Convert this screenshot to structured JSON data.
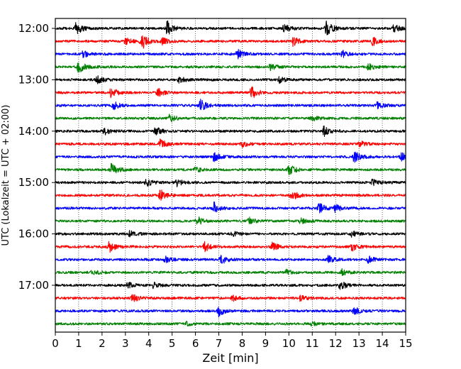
{
  "chart_data": {
    "type": "line",
    "subtype": "helicorder",
    "title": "",
    "xlabel": "Zeit  [min]",
    "ylabel": "UTC (Lokalzeit = UTC + 02:00)",
    "xlim": [
      0,
      15
    ],
    "x_ticks": [
      "0",
      "1",
      "2",
      "3",
      "4",
      "5",
      "6",
      "7",
      "8",
      "9",
      "10",
      "11",
      "12",
      "13",
      "14",
      "15"
    ],
    "y_tick_labels": [
      "12:00",
      "13:00",
      "14:00",
      "15:00",
      "16:00",
      "17:00"
    ],
    "rows_per_hour": 4,
    "row_minutes": 15,
    "grid": "vertical dotted at each minute",
    "trace_colors": [
      "#000000",
      "#ff0000",
      "#0000ff",
      "#008000"
    ],
    "rows": [
      {
        "start": "12:00",
        "events": [
          [
            0.9,
            1.0
          ],
          [
            4.8,
            1.1
          ],
          [
            9.8,
            0.6
          ],
          [
            11.6,
            1.3
          ],
          [
            14.5,
            0.6
          ]
        ]
      },
      {
        "start": "12:15",
        "events": [
          [
            3.0,
            0.6
          ],
          [
            3.7,
            1.3
          ],
          [
            4.6,
            0.5
          ],
          [
            10.2,
            0.8
          ],
          [
            13.6,
            0.6
          ]
        ]
      },
      {
        "start": "12:30",
        "events": [
          [
            1.2,
            0.5
          ],
          [
            7.8,
            0.7
          ],
          [
            12.3,
            0.5
          ]
        ]
      },
      {
        "start": "12:45",
        "events": [
          [
            1.0,
            0.9
          ],
          [
            9.2,
            0.6
          ],
          [
            13.4,
            0.6
          ]
        ]
      },
      {
        "start": "13:00",
        "events": [
          [
            1.8,
            0.6
          ],
          [
            5.3,
            0.5
          ],
          [
            9.6,
            0.4
          ]
        ]
      },
      {
        "start": "13:15",
        "events": [
          [
            2.4,
            0.9
          ],
          [
            4.4,
            0.7
          ],
          [
            8.4,
            1.0
          ]
        ]
      },
      {
        "start": "13:30",
        "events": [
          [
            2.5,
            0.6
          ],
          [
            6.2,
            1.0
          ],
          [
            13.8,
            0.5
          ]
        ]
      },
      {
        "start": "13:45",
        "events": [
          [
            4.9,
            0.6
          ],
          [
            11.0,
            0.4
          ]
        ]
      },
      {
        "start": "14:00",
        "events": [
          [
            2.1,
            0.5
          ],
          [
            4.3,
            0.6
          ],
          [
            11.5,
            0.8
          ]
        ]
      },
      {
        "start": "14:15",
        "events": [
          [
            4.5,
            0.7
          ],
          [
            8.0,
            0.4
          ],
          [
            13.0,
            0.5
          ]
        ]
      },
      {
        "start": "14:30",
        "events": [
          [
            6.8,
            0.7
          ],
          [
            12.8,
            0.9
          ],
          [
            14.8,
            0.7
          ]
        ]
      },
      {
        "start": "14:45",
        "events": [
          [
            2.4,
            1.0
          ],
          [
            10.0,
            1.0
          ],
          [
            6.0,
            0.4
          ]
        ]
      },
      {
        "start": "15:00",
        "events": [
          [
            3.9,
            0.6
          ],
          [
            5.2,
            0.6
          ],
          [
            13.6,
            0.6
          ]
        ]
      },
      {
        "start": "15:15",
        "events": [
          [
            4.5,
            0.9
          ],
          [
            10.1,
            0.9
          ]
        ]
      },
      {
        "start": "15:30",
        "events": [
          [
            6.8,
            0.9
          ],
          [
            11.3,
            0.8
          ],
          [
            12.0,
            0.6
          ]
        ]
      },
      {
        "start": "15:45",
        "events": [
          [
            6.1,
            0.6
          ],
          [
            8.3,
            0.5
          ],
          [
            10.5,
            0.4
          ]
        ]
      },
      {
        "start": "16:00",
        "events": [
          [
            3.2,
            0.5
          ],
          [
            7.6,
            0.4
          ],
          [
            12.7,
            0.4
          ]
        ]
      },
      {
        "start": "16:15",
        "events": [
          [
            2.3,
            0.9
          ],
          [
            6.4,
            0.8
          ],
          [
            9.3,
            0.6
          ],
          [
            12.7,
            0.6
          ]
        ]
      },
      {
        "start": "16:30",
        "events": [
          [
            4.7,
            0.5
          ],
          [
            7.1,
            0.7
          ],
          [
            11.7,
            0.6
          ],
          [
            13.4,
            0.5
          ]
        ]
      },
      {
        "start": "16:45",
        "events": [
          [
            1.6,
            0.4
          ],
          [
            9.9,
            0.4
          ],
          [
            12.3,
            0.5
          ]
        ]
      },
      {
        "start": "17:00",
        "events": [
          [
            3.1,
            0.5
          ],
          [
            4.2,
            0.4
          ],
          [
            12.2,
            0.7
          ]
        ]
      },
      {
        "start": "17:15",
        "events": [
          [
            3.3,
            0.7
          ],
          [
            7.6,
            0.4
          ],
          [
            10.5,
            0.4
          ]
        ]
      },
      {
        "start": "17:30",
        "events": [
          [
            7.0,
            0.8
          ],
          [
            12.8,
            0.6
          ]
        ]
      },
      {
        "start": "17:45",
        "events": [
          [
            5.6,
            0.3
          ],
          [
            11.0,
            0.3
          ]
        ]
      }
    ]
  }
}
